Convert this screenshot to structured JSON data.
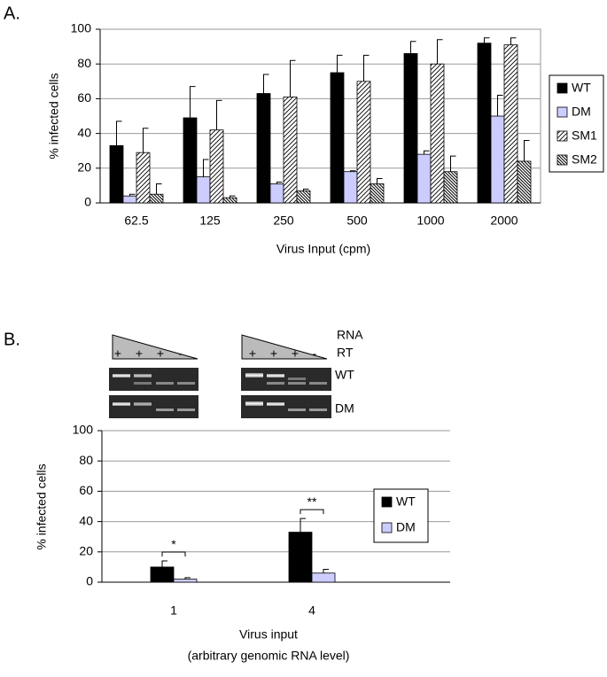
{
  "panels": [
    "A.",
    "B."
  ],
  "gel": {
    "rna_label": "RNA",
    "rt_label": "RT",
    "rt_signs": [
      "+",
      "+",
      "+",
      "-",
      "+",
      "+",
      "+",
      "-"
    ],
    "rows": [
      "WT",
      "DM"
    ]
  },
  "chart_data": [
    {
      "type": "bar",
      "ylabel": "% infected cells",
      "xlabel": [
        "Virus Input (cpm)"
      ],
      "categories": [
        "62.5",
        "125",
        "250",
        "500",
        "1000",
        "2000"
      ],
      "ylim": [
        0,
        100
      ],
      "yticks": [
        0,
        20,
        40,
        60,
        80,
        100
      ],
      "grid": true,
      "legend": "right",
      "series": [
        {
          "name": "WT",
          "color": "#000000",
          "values": [
            33,
            49,
            63,
            75,
            86,
            92
          ],
          "errors": [
            14,
            18,
            11,
            10,
            7,
            3
          ]
        },
        {
          "name": "DM",
          "color": "#ccccff",
          "values": [
            4,
            15,
            11,
            18,
            28,
            50
          ],
          "errors": [
            1,
            10,
            1,
            0.5,
            2,
            12
          ]
        },
        {
          "name": "SM1",
          "color": "#ffffff",
          "hatch": "forward",
          "values": [
            29,
            42,
            61,
            70,
            80,
            91
          ],
          "errors": [
            14,
            17,
            21,
            15,
            14,
            4
          ]
        },
        {
          "name": "SM2",
          "color": "#ffffff",
          "hatch": "backward",
          "values": [
            5,
            3,
            7,
            11,
            18,
            24
          ],
          "errors": [
            6,
            1,
            1,
            3,
            9,
            12
          ]
        }
      ]
    },
    {
      "type": "bar",
      "ylabel": "% infected cells",
      "xlabel": [
        "Virus input",
        "(arbitrary genomic RNA level)"
      ],
      "categories": [
        "1",
        "4"
      ],
      "annotations": [
        "*",
        "**"
      ],
      "ylim": [
        0,
        100
      ],
      "yticks": [
        0,
        20,
        40,
        60,
        80,
        100
      ],
      "grid": true,
      "legend": "right",
      "series": [
        {
          "name": "WT",
          "color": "#000000",
          "values": [
            10,
            33
          ],
          "errors": [
            4,
            9
          ]
        },
        {
          "name": "DM",
          "color": "#ccccff",
          "values": [
            2,
            6
          ],
          "errors": [
            1,
            2.5
          ]
        }
      ]
    }
  ]
}
